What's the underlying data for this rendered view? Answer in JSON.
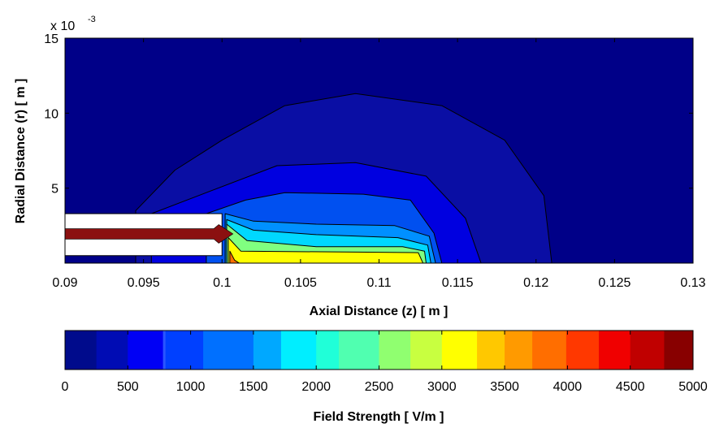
{
  "chart_data": [
    {
      "type": "heatmap",
      "subtype": "filled-contour",
      "xlabel": "Axial Distance (z) [ m ]",
      "ylabel": "Radial Distance (r) [ m ]",
      "xlim": [
        0.09,
        0.13
      ],
      "ylim": [
        0,
        0.015
      ],
      "x_ticks": [
        "0.09",
        "0.095",
        "0.1",
        "0.105",
        "0.11",
        "0.115",
        "0.12",
        "0.125",
        "0.13"
      ],
      "y_ticks": [
        "5",
        "10",
        "15"
      ],
      "y_tick_values": [
        0.005,
        0.01,
        0.015
      ],
      "y_exponent_base": "x 10",
      "y_exponent_power": "-3",
      "electrode": {
        "insulator_z": [
          0.09,
          0.1
        ],
        "insulator_r": [
          0.0005,
          0.0033
        ],
        "conductor_r": [
          0.0016,
          0.0023
        ],
        "conductor_tip_z": 0.1007,
        "conductor_color": "#8b1010"
      },
      "contours": [
        {
          "level": "low",
          "color": "#0a0ea4",
          "points": [
            [
              0.0945,
              0.0035
            ],
            [
              0.097,
              0.0062
            ],
            [
              0.1,
              0.0082
            ],
            [
              0.104,
              0.0105
            ],
            [
              0.1085,
              0.0113
            ],
            [
              0.114,
              0.0105
            ],
            [
              0.118,
              0.0082
            ],
            [
              0.1205,
              0.0045
            ],
            [
              0.121,
              0
            ]
          ]
        },
        {
          "level": "mid1",
          "color": "#0000e0",
          "points": [
            [
              0.0955,
              0.0033
            ],
            [
              0.099,
              0.0047
            ],
            [
              0.1035,
              0.0065
            ],
            [
              0.1085,
              0.0067
            ],
            [
              0.113,
              0.0058
            ],
            [
              0.1155,
              0.003
            ],
            [
              0.1165,
              0
            ]
          ]
        },
        {
          "level": "mid2",
          "color": "#0050f0",
          "points": [
            [
              0.099,
              0.0033
            ],
            [
              0.1015,
              0.0042
            ],
            [
              0.104,
              0.0047
            ],
            [
              0.109,
              0.0046
            ],
            [
              0.112,
              0.0042
            ],
            [
              0.1135,
              0.002
            ],
            [
              0.114,
              0
            ]
          ]
        },
        {
          "level": "mid3",
          "color": "#0090ff",
          "points": [
            [
              0.1002,
              0.0033
            ],
            [
              0.102,
              0.0028
            ],
            [
              0.106,
              0.0026
            ],
            [
              0.111,
              0.0025
            ],
            [
              0.1132,
              0.0018
            ],
            [
              0.1136,
              0
            ]
          ]
        },
        {
          "level": "mid4",
          "color": "#00d8ff",
          "points": [
            [
              0.1003,
              0.0029
            ],
            [
              0.102,
              0.0022
            ],
            [
              0.106,
              0.0019
            ],
            [
              0.1112,
              0.0017
            ],
            [
              0.1131,
              0.0012
            ],
            [
              0.1133,
              0
            ]
          ]
        },
        {
          "level": "mid5",
          "color": "#80ff80",
          "points": [
            [
              0.1003,
              0.0026
            ],
            [
              0.1016,
              0.0015
            ],
            [
              0.106,
              0.0011
            ],
            [
              0.1115,
              0.0011
            ],
            [
              0.1129,
              0.0008
            ],
            [
              0.113,
              0
            ]
          ]
        },
        {
          "level": "high",
          "color": "#ffff00",
          "points": [
            [
              0.1004,
              0.0017
            ],
            [
              0.1012,
              0.0008
            ],
            [
              0.1125,
              0.0007
            ],
            [
              0.1128,
              0
            ],
            [
              0.1005,
              0
            ]
          ]
        },
        {
          "level": "peak",
          "color": "#ff7000",
          "points": [
            [
              0.1005,
              0.0008
            ],
            [
              0.1008,
              0.0002
            ],
            [
              0.1011,
              0
            ]
          ]
        }
      ],
      "background_color": "#000088"
    },
    {
      "type": "colorbar",
      "xlabel": "Field Strength [ V/m ]",
      "range": [
        0,
        5000
      ],
      "ticks": [
        "0",
        "500",
        "1000",
        "1500",
        "2000",
        "2500",
        "3000",
        "3500",
        "4000",
        "4500",
        "5000"
      ],
      "tick_values": [
        0,
        500,
        1000,
        1500,
        2000,
        2500,
        3000,
        3500,
        4000,
        4500,
        5000
      ],
      "bands": [
        {
          "from": 0,
          "to": 250,
          "color": "#000b8c"
        },
        {
          "from": 250,
          "to": 500,
          "color": "#000cb4"
        },
        {
          "from": 500,
          "to": 780,
          "color": "#0000f5"
        },
        {
          "from": 780,
          "to": 800,
          "color": "#2a55ff"
        },
        {
          "from": 800,
          "to": 1100,
          "color": "#0040ff"
        },
        {
          "from": 1100,
          "to": 1500,
          "color": "#0070ff"
        },
        {
          "from": 1500,
          "to": 1720,
          "color": "#00a8ff"
        },
        {
          "from": 1720,
          "to": 2000,
          "color": "#00eeff"
        },
        {
          "from": 2000,
          "to": 2180,
          "color": "#20ffd8"
        },
        {
          "from": 2180,
          "to": 2500,
          "color": "#50ffb0"
        },
        {
          "from": 2500,
          "to": 2750,
          "color": "#90ff70"
        },
        {
          "from": 2750,
          "to": 3000,
          "color": "#c8ff40"
        },
        {
          "from": 3000,
          "to": 3280,
          "color": "#ffff00"
        },
        {
          "from": 3280,
          "to": 3500,
          "color": "#ffc800"
        },
        {
          "from": 3500,
          "to": 3720,
          "color": "#ff9a00"
        },
        {
          "from": 3720,
          "to": 3990,
          "color": "#ff6e00"
        },
        {
          "from": 3990,
          "to": 4250,
          "color": "#ff3800"
        },
        {
          "from": 4250,
          "to": 4500,
          "color": "#f00000"
        },
        {
          "from": 4500,
          "to": 4770,
          "color": "#c00000"
        },
        {
          "from": 4770,
          "to": 5000,
          "color": "#880000"
        }
      ]
    }
  ]
}
